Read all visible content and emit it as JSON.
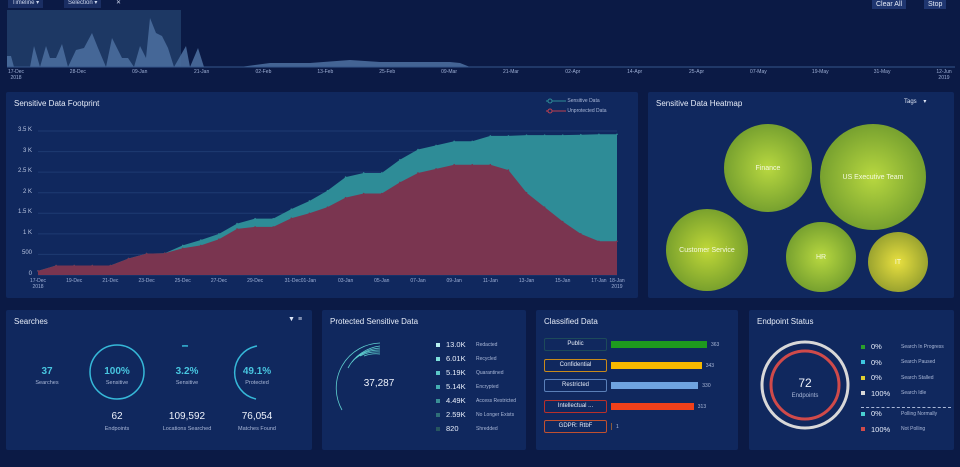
{
  "toolbar": {
    "timeline": "Timeline ▾",
    "selection": "Selection ▾",
    "close": "✕",
    "clear_all": "Clear All",
    "stop": "Stop"
  },
  "timeline": {
    "ticks": [
      "17-Dec\n2018",
      "28-Dec",
      "09-Jan",
      "21-Jan",
      "02-Feb",
      "13-Feb",
      "25-Feb",
      "09-Mar",
      "21-Mar",
      "02-Apr",
      "14-Apr",
      "25-Apr",
      "07-May",
      "19-May",
      "31-May",
      "12-Jun\n2019"
    ]
  },
  "footprint": {
    "title": "Sensitive Data Footprint"
  },
  "chart_data": {
    "type": "area",
    "title": "Sensitive Data Footprint",
    "x": [
      "17-Dec",
      "18-Dec",
      "19-Dec",
      "20-Dec",
      "21-Dec",
      "22-Dec",
      "23-Dec",
      "24-Dec",
      "25-Dec",
      "26-Dec",
      "27-Dec",
      "28-Dec",
      "29-Dec",
      "30-Dec",
      "31-Dec",
      "01-Jan",
      "02-Jan",
      "03-Jan",
      "04-Jan",
      "05-Jan",
      "06-Jan",
      "07-Jan",
      "08-Jan",
      "09-Jan",
      "10-Jan",
      "11-Jan",
      "12-Jan",
      "13-Jan",
      "14-Jan",
      "15-Jan",
      "16-Jan",
      "17-Jan",
      "18-Jan"
    ],
    "xticks": [
      "17-Dec\n2018",
      "19-Dec",
      "21-Dec",
      "23-Dec",
      "25-Dec",
      "27-Dec",
      "29-Dec",
      "31-Dec01-Jan",
      "03-Jan",
      "05-Jan",
      "07-Jan",
      "09-Jan",
      "11-Jan",
      "13-Jan",
      "15-Jan",
      "17-Jan",
      "18-Jan\n2019"
    ],
    "yticks": [
      "0",
      "500",
      "1 K",
      "1.5 K",
      "2 K",
      "2.5 K",
      "3 K",
      "3.5 K"
    ],
    "ylim": [
      0,
      3500
    ],
    "legend": "top-right",
    "series": [
      {
        "name": "Sensitive Data",
        "color": "#2e8c97",
        "values": [
          100,
          230,
          230,
          230,
          230,
          400,
          520,
          530,
          720,
          850,
          1000,
          1250,
          1370,
          1370,
          1600,
          1800,
          2050,
          2380,
          2480,
          2480,
          2800,
          3050,
          3150,
          3250,
          3250,
          3380,
          3380,
          3400,
          3400,
          3400,
          3410,
          3420,
          3420
        ]
      },
      {
        "name": "Unprotected Data",
        "color": "#7a3550",
        "values": [
          100,
          230,
          230,
          230,
          230,
          400,
          520,
          530,
          650,
          720,
          870,
          1120,
          1170,
          1170,
          1380,
          1500,
          1650,
          1880,
          1980,
          1980,
          2250,
          2480,
          2580,
          2680,
          2680,
          2680,
          2550,
          2000,
          1650,
          1300,
          1000,
          820,
          820
        ]
      }
    ]
  },
  "heatmap": {
    "title": "Sensitive Data Heatmap",
    "tags": "Tags",
    "bubbles": [
      "Finance",
      "US Executive Team",
      "Customer Service",
      "HR",
      "IT"
    ]
  },
  "searches": {
    "title": "Searches",
    "searches": "37",
    "searches_label": "Searches",
    "s1": "100%",
    "s1_label": "Sensitive",
    "s2": "3.2%",
    "s2_label": "Sensitive",
    "s3": "49.1%",
    "s3_label": "Protected",
    "endpoints": "62",
    "endpoints_label": "Endpoints",
    "locations": "109,592",
    "locations_label": "Locations Searched",
    "matches": "76,054",
    "matches_label": "Matches Found",
    "progress": {
      "sensitive_pct": 100,
      "sensitive2_pct": 3.2,
      "protected_pct": 49.1
    }
  },
  "protected": {
    "title": "Protected Sensitive Data",
    "total": "37,287",
    "items": [
      {
        "v": "13.0K",
        "l": "Redacted",
        "c": "#b9f0f0"
      },
      {
        "v": "6.01K",
        "l": "Recycled",
        "c": "#7fe0dc"
      },
      {
        "v": "5.19K",
        "l": "Quarantined",
        "c": "#5cc8c8"
      },
      {
        "v": "5.14K",
        "l": "Encrypted",
        "c": "#45aeb2"
      },
      {
        "v": "4.49K",
        "l": "Access Restricted",
        "c": "#3a8f96"
      },
      {
        "v": "2.59K",
        "l": "No Longer Exists",
        "c": "#2f6f78"
      },
      {
        "v": "820",
        "l": "Shredded",
        "c": "#27565f"
      }
    ]
  },
  "classified": {
    "title": "Classified Data",
    "items": [
      {
        "l": "Public",
        "v": "363",
        "c": "#1e9a1e",
        "b": "#1d4a5a"
      },
      {
        "l": "Confidential",
        "v": "343",
        "c": "#f5b800",
        "b": "#c98a1a"
      },
      {
        "l": "Restricted",
        "v": "330",
        "c": "#6fa3e0",
        "b": "#5a7fb8"
      },
      {
        "l": "Intellectual ...",
        "v": "313",
        "c": "#f0401a",
        "b": "#b8302a"
      },
      {
        "l": "GDPR: RtbF",
        "v": "1",
        "c": "#8a5a3a",
        "b": "#c05030"
      }
    ]
  },
  "endpoint": {
    "title": "Endpoint Status",
    "count": "72",
    "label": "Endpoints",
    "items": [
      {
        "v": "0%",
        "l": "Search In Progress",
        "c": "#2aa02a"
      },
      {
        "v": "0%",
        "l": "Search Paused",
        "c": "#3ec8e0"
      },
      {
        "v": "0%",
        "l": "Search Stalled",
        "c": "#e0d030"
      },
      {
        "v": "100%",
        "l": "Search Idle",
        "c": "#d8d8d8"
      },
      {
        "v": "0%",
        "l": "Polling Normally",
        "c": "#4ad0d0"
      },
      {
        "v": "100%",
        "l": "Not Polling",
        "c": "#d04a4a"
      }
    ]
  }
}
